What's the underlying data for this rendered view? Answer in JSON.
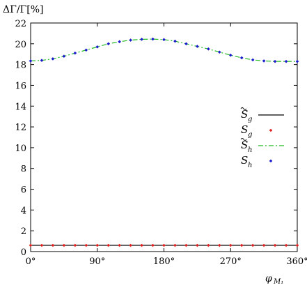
{
  "chart_data": {
    "type": "line",
    "ylabel": "ΔΓ/Γ[%]",
    "xlabel": "φ",
    "xlabel_subscript": "M₁",
    "xlim": [
      0,
      360
    ],
    "ylim": [
      0,
      22
    ],
    "x_ticks": [
      "0°",
      "90°",
      "180°",
      "270°",
      "360°"
    ],
    "y_ticks": [
      "0",
      "2",
      "4",
      "6",
      "8",
      "10",
      "12",
      "14",
      "16",
      "18",
      "20",
      "22"
    ],
    "grid": false,
    "legend_position": "right",
    "x": [
      0,
      15,
      30,
      45,
      60,
      75,
      90,
      105,
      120,
      135,
      150,
      165,
      180,
      195,
      210,
      225,
      240,
      255,
      270,
      285,
      300,
      315,
      330,
      345,
      360
    ],
    "series": [
      {
        "name": "S̃g",
        "style": "line",
        "color": "#000000",
        "values": [
          0.6,
          0.6,
          0.6,
          0.6,
          0.6,
          0.6,
          0.6,
          0.6,
          0.6,
          0.6,
          0.6,
          0.6,
          0.6,
          0.6,
          0.6,
          0.6,
          0.6,
          0.6,
          0.6,
          0.6,
          0.6,
          0.6,
          0.6,
          0.6,
          0.6
        ]
      },
      {
        "name": "Sg",
        "style": "points",
        "color": "#e02020",
        "values": [
          0.6,
          0.6,
          0.6,
          0.6,
          0.6,
          0.6,
          0.6,
          0.6,
          0.6,
          0.6,
          0.6,
          0.6,
          0.6,
          0.6,
          0.6,
          0.6,
          0.6,
          0.6,
          0.6,
          0.6,
          0.6,
          0.6,
          0.6,
          0.6,
          0.6
        ]
      },
      {
        "name": "S̃h",
        "style": "dashdot",
        "color": "#22bb22",
        "values": [
          18.35,
          18.4,
          18.55,
          18.8,
          19.1,
          19.4,
          19.7,
          20.0,
          20.2,
          20.35,
          20.43,
          20.45,
          20.4,
          20.25,
          20.0,
          19.75,
          19.5,
          19.2,
          18.9,
          18.65,
          18.45,
          18.35,
          18.3,
          18.3,
          18.3
        ]
      },
      {
        "name": "Sh",
        "style": "points",
        "color": "#1a1acc",
        "values": [
          18.35,
          18.4,
          18.55,
          18.8,
          19.1,
          19.4,
          19.7,
          20.0,
          20.2,
          20.35,
          20.43,
          20.45,
          20.4,
          20.25,
          20.0,
          19.75,
          19.5,
          19.2,
          18.9,
          18.65,
          18.45,
          18.35,
          18.3,
          18.3,
          18.3
        ]
      }
    ],
    "legend": [
      {
        "main": "S",
        "sub": "g",
        "tilde": true
      },
      {
        "main": "S",
        "sub": "g",
        "tilde": false
      },
      {
        "main": "S",
        "sub": "h",
        "tilde": true
      },
      {
        "main": "S",
        "sub": "h",
        "tilde": false
      }
    ]
  }
}
